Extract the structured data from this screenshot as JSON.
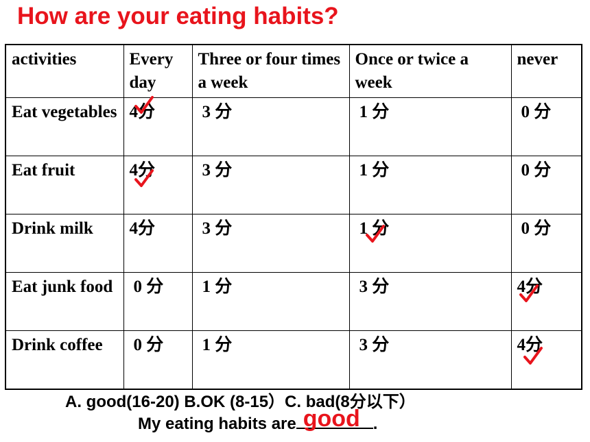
{
  "title": "How are your eating habits?",
  "colors": {
    "title": "#e8141c",
    "check": "#e8141c",
    "answer": "#e8141c"
  },
  "table": {
    "headers": [
      "activities",
      "Every day",
      "Three or four times a week",
      "Once or twice a week",
      "never"
    ],
    "rows": [
      {
        "activity": "Eat vegetables",
        "scores": [
          "4分",
          "3 分",
          "1 分",
          "0 分"
        ],
        "checked": 0
      },
      {
        "activity": "Eat fruit",
        "scores": [
          "4分",
          "3 分",
          "1 分",
          "0 分"
        ],
        "checked": 0
      },
      {
        "activity": "Drink milk",
        "scores": [
          "4分",
          "3 分",
          "1 分",
          "0 分"
        ],
        "checked": 2
      },
      {
        "activity": "Eat junk food",
        "scores": [
          "0 分",
          "1 分",
          "3 分",
          "4分"
        ],
        "checked": 3
      },
      {
        "activity": "Drink coffee",
        "scores": [
          "0 分",
          "1 分",
          "3 分",
          "4分"
        ],
        "checked": 3
      }
    ]
  },
  "footer": {
    "scale": "A. good(16-20) B.OK (8-15）C. bad(8分以下）",
    "sentence_prefix": "My eating habits are",
    "sentence_suffix": ".",
    "answer": "good"
  },
  "icons": {
    "check": "check-mark-icon"
  }
}
